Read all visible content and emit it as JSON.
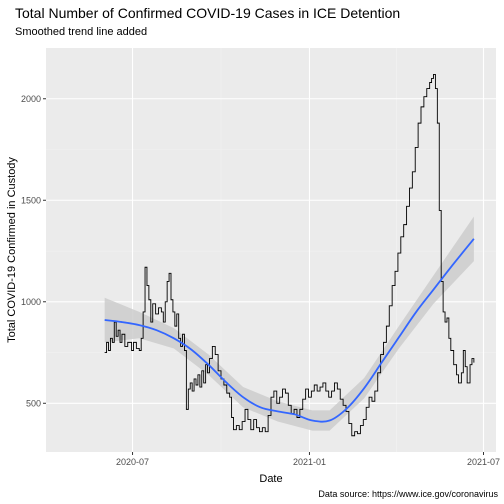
{
  "chart_data": {
    "type": "line",
    "title": "Total Number of Confirmed COVID-19 Cases in ICE Detention",
    "subtitle": "Smoothed trend line added",
    "xlabel": "Date",
    "ylabel": "Total COVID-19 Confirmed in Custody",
    "caption": "Data source: https://www.ice.gov/coronavirus",
    "xlim": [
      "2020-04-02",
      "2021-07-14"
    ],
    "ylim": [
      260,
      2250
    ],
    "x_ticks": [
      {
        "value": "2020-07-01",
        "label": "2020-07"
      },
      {
        "value": "2021-01-01",
        "label": "2021-01"
      },
      {
        "value": "2021-07-01",
        "label": "2021-07"
      }
    ],
    "y_ticks": [
      500,
      1000,
      1500,
      2000
    ],
    "grid": true,
    "colors": {
      "panel": "#ebebeb",
      "grid_major": "#ffffff",
      "grid_minor": "#f2f2f2",
      "series": "#000000",
      "trend": "#3366ff",
      "band": "#cccccc"
    },
    "series": [
      {
        "values": [
          [
            "2020-06-02",
            750
          ],
          [
            "2020-06-04",
            800
          ],
          [
            "2020-06-06",
            760
          ],
          [
            "2020-06-08",
            820
          ],
          [
            "2020-06-10",
            800
          ],
          [
            "2020-06-12",
            900
          ],
          [
            "2020-06-14",
            830
          ],
          [
            "2020-06-16",
            860
          ],
          [
            "2020-06-18",
            800
          ],
          [
            "2020-06-20",
            840
          ],
          [
            "2020-06-23",
            780
          ],
          [
            "2020-06-26",
            800
          ],
          [
            "2020-06-30",
            760
          ],
          [
            "2020-07-02",
            800
          ],
          [
            "2020-07-05",
            770
          ],
          [
            "2020-07-08",
            760
          ],
          [
            "2020-07-10",
            820
          ],
          [
            "2020-07-12",
            950
          ],
          [
            "2020-07-14",
            1170
          ],
          [
            "2020-07-16",
            1080
          ],
          [
            "2020-07-18",
            1010
          ],
          [
            "2020-07-20",
            900
          ],
          [
            "2020-07-22",
            990
          ],
          [
            "2020-07-25",
            940
          ],
          [
            "2020-07-28",
            970
          ],
          [
            "2020-07-31",
            950
          ],
          [
            "2020-08-02",
            900
          ],
          [
            "2020-08-04",
            1000
          ],
          [
            "2020-08-06",
            1100
          ],
          [
            "2020-08-08",
            1140
          ],
          [
            "2020-08-10",
            1010
          ],
          [
            "2020-08-12",
            950
          ],
          [
            "2020-08-14",
            880
          ],
          [
            "2020-08-16",
            940
          ],
          [
            "2020-08-18",
            820
          ],
          [
            "2020-08-20",
            780
          ],
          [
            "2020-08-22",
            840
          ],
          [
            "2020-08-24",
            760
          ],
          [
            "2020-08-26",
            470
          ],
          [
            "2020-08-28",
            570
          ],
          [
            "2020-08-30",
            600
          ],
          [
            "2020-09-01",
            560
          ],
          [
            "2020-09-03",
            620
          ],
          [
            "2020-09-05",
            590
          ],
          [
            "2020-09-07",
            640
          ],
          [
            "2020-09-09",
            580
          ],
          [
            "2020-09-11",
            660
          ],
          [
            "2020-09-13",
            600
          ],
          [
            "2020-09-15",
            690
          ],
          [
            "2020-09-17",
            650
          ],
          [
            "2020-09-19",
            720
          ],
          [
            "2020-09-22",
            780
          ],
          [
            "2020-09-25",
            740
          ],
          [
            "2020-09-28",
            660
          ],
          [
            "2020-10-01",
            620
          ],
          [
            "2020-10-04",
            590
          ],
          [
            "2020-10-07",
            550
          ],
          [
            "2020-10-10",
            530
          ],
          [
            "2020-10-12",
            430
          ],
          [
            "2020-10-14",
            370
          ],
          [
            "2020-10-17",
            390
          ],
          [
            "2020-10-20",
            370
          ],
          [
            "2020-10-23",
            410
          ],
          [
            "2020-10-26",
            470
          ],
          [
            "2020-10-29",
            420
          ],
          [
            "2020-11-01",
            370
          ],
          [
            "2020-11-04",
            420
          ],
          [
            "2020-11-07",
            380
          ],
          [
            "2020-11-10",
            360
          ],
          [
            "2020-11-13",
            380
          ],
          [
            "2020-11-16",
            360
          ],
          [
            "2020-11-19",
            440
          ],
          [
            "2020-11-22",
            530
          ],
          [
            "2020-11-25",
            560
          ],
          [
            "2020-11-28",
            500
          ],
          [
            "2020-12-01",
            530
          ],
          [
            "2020-12-04",
            570
          ],
          [
            "2020-12-07",
            550
          ],
          [
            "2020-12-10",
            490
          ],
          [
            "2020-12-13",
            450
          ],
          [
            "2020-12-16",
            470
          ],
          [
            "2020-12-19",
            430
          ],
          [
            "2020-12-22",
            470
          ],
          [
            "2020-12-25",
            520
          ],
          [
            "2020-12-28",
            570
          ],
          [
            "2020-12-31",
            530
          ],
          [
            "2021-01-03",
            560
          ],
          [
            "2021-01-06",
            590
          ],
          [
            "2021-01-09",
            560
          ],
          [
            "2021-01-12",
            580
          ],
          [
            "2021-01-15",
            600
          ],
          [
            "2021-01-18",
            560
          ],
          [
            "2021-01-21",
            530
          ],
          [
            "2021-01-24",
            560
          ],
          [
            "2021-01-27",
            600
          ],
          [
            "2021-01-30",
            570
          ],
          [
            "2021-02-02",
            520
          ],
          [
            "2021-02-05",
            490
          ],
          [
            "2021-02-08",
            460
          ],
          [
            "2021-02-11",
            400
          ],
          [
            "2021-02-14",
            340
          ],
          [
            "2021-02-17",
            360
          ],
          [
            "2021-02-20",
            350
          ],
          [
            "2021-02-23",
            390
          ],
          [
            "2021-02-26",
            420
          ],
          [
            "2021-03-01",
            480
          ],
          [
            "2021-03-04",
            530
          ],
          [
            "2021-03-07",
            510
          ],
          [
            "2021-03-10",
            560
          ],
          [
            "2021-03-13",
            650
          ],
          [
            "2021-03-16",
            740
          ],
          [
            "2021-03-19",
            800
          ],
          [
            "2021-03-22",
            880
          ],
          [
            "2021-03-25",
            980
          ],
          [
            "2021-03-28",
            1080
          ],
          [
            "2021-03-31",
            1150
          ],
          [
            "2021-04-03",
            1240
          ],
          [
            "2021-04-06",
            1320
          ],
          [
            "2021-04-09",
            1380
          ],
          [
            "2021-04-12",
            1470
          ],
          [
            "2021-04-15",
            1560
          ],
          [
            "2021-04-18",
            1640
          ],
          [
            "2021-04-21",
            1760
          ],
          [
            "2021-04-24",
            1880
          ],
          [
            "2021-04-27",
            1960
          ],
          [
            "2021-04-30",
            2010
          ],
          [
            "2021-05-03",
            2050
          ],
          [
            "2021-05-06",
            2080
          ],
          [
            "2021-05-08",
            2100
          ],
          [
            "2021-05-10",
            2120
          ],
          [
            "2021-05-12",
            2050
          ],
          [
            "2021-05-14",
            1880
          ],
          [
            "2021-05-16",
            1450
          ],
          [
            "2021-05-18",
            1100
          ],
          [
            "2021-05-20",
            950
          ],
          [
            "2021-05-22",
            900
          ],
          [
            "2021-05-24",
            920
          ],
          [
            "2021-05-26",
            820
          ],
          [
            "2021-05-28",
            760
          ],
          [
            "2021-05-31",
            690
          ],
          [
            "2021-06-03",
            640
          ],
          [
            "2021-06-05",
            600
          ],
          [
            "2021-06-08",
            650
          ],
          [
            "2021-06-10",
            760
          ],
          [
            "2021-06-12",
            680
          ],
          [
            "2021-06-14",
            600
          ],
          [
            "2021-06-17",
            690
          ],
          [
            "2021-06-19",
            720
          ],
          [
            "2021-06-21",
            700
          ]
        ]
      },
      {
        "type": "smooth",
        "values": [
          [
            "2020-06-02",
            910
          ],
          [
            "2020-06-20",
            900
          ],
          [
            "2020-07-08",
            885
          ],
          [
            "2020-07-26",
            860
          ],
          [
            "2020-08-13",
            820
          ],
          [
            "2020-08-31",
            765
          ],
          [
            "2020-09-18",
            690
          ],
          [
            "2020-10-06",
            605
          ],
          [
            "2020-10-24",
            530
          ],
          [
            "2020-11-11",
            480
          ],
          [
            "2020-11-29",
            460
          ],
          [
            "2020-12-17",
            445
          ],
          [
            "2021-01-04",
            415
          ],
          [
            "2021-01-22",
            415
          ],
          [
            "2021-02-09",
            475
          ],
          [
            "2021-02-27",
            575
          ],
          [
            "2021-03-17",
            700
          ],
          [
            "2021-04-04",
            825
          ],
          [
            "2021-04-22",
            950
          ],
          [
            "2021-05-10",
            1060
          ],
          [
            "2021-05-28",
            1170
          ],
          [
            "2021-06-21",
            1310
          ]
        ],
        "band": [
          [
            "2020-06-02",
            800,
            1020
          ],
          [
            "2020-07-08",
            820,
            950
          ],
          [
            "2020-08-13",
            770,
            870
          ],
          [
            "2020-09-18",
            640,
            740
          ],
          [
            "2020-10-24",
            480,
            580
          ],
          [
            "2020-11-29",
            410,
            510
          ],
          [
            "2021-01-04",
            365,
            465
          ],
          [
            "2021-01-22",
            365,
            465
          ],
          [
            "2021-02-27",
            525,
            625
          ],
          [
            "2021-04-04",
            770,
            880
          ],
          [
            "2021-05-10",
            990,
            1130
          ],
          [
            "2021-06-21",
            1200,
            1420
          ]
        ]
      }
    ]
  }
}
